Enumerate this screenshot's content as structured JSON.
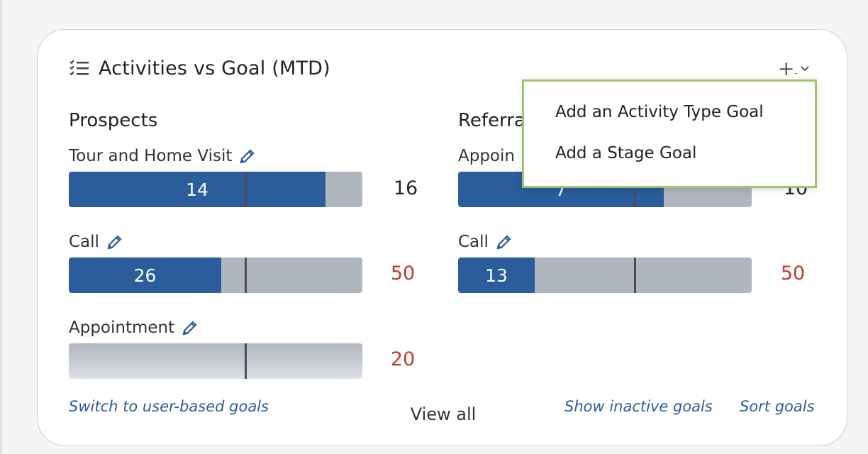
{
  "widget": {
    "title": "Activities vs Goal (MTD)",
    "title_icon": "checklist-icon",
    "add_control": {
      "plus": "+",
      "minus": "-",
      "icon": "chevron-down-icon"
    }
  },
  "dropdown": {
    "items": [
      "Add an Activity Type Goal",
      "Add a Stage Goal"
    ]
  },
  "sections": [
    {
      "title": "Prospects",
      "goals": [
        {
          "label": "Tour and Home Visit",
          "actual": "14",
          "goal": "16",
          "progress": 0.875,
          "marker": 0.6,
          "status": "ok"
        },
        {
          "label": "Call",
          "actual": "26",
          "goal": "50",
          "progress": 0.52,
          "marker": 0.6,
          "status": "under"
        },
        {
          "label": "Appointment",
          "actual": "",
          "goal": "20",
          "progress": 0,
          "marker": 0.6,
          "status": "under"
        }
      ]
    },
    {
      "title": "Referra",
      "goals": [
        {
          "label": "Appoin",
          "actual": "7",
          "goal": "10",
          "progress": 0.7,
          "marker": 0.6,
          "status": "ok"
        },
        {
          "label": "Call",
          "actual": "13",
          "goal": "50",
          "progress": 0.26,
          "marker": 0.6,
          "status": "under"
        }
      ]
    }
  ],
  "footer": {
    "switch_link": "Switch to user-based goals",
    "view_all": "View all",
    "inactive_link": "Show inactive goals",
    "sort_link": "Sort goals"
  },
  "colors": {
    "fill": "#2b5c9b",
    "track": "#b0b6be",
    "under_goal": "#c0392b",
    "dropdown_border": "#9dc46b"
  }
}
